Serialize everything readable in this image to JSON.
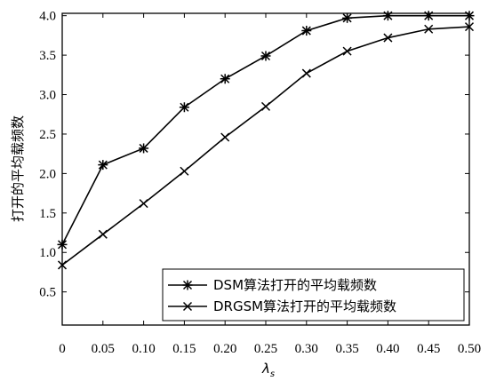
{
  "chart_data": {
    "type": "line",
    "x": [
      0,
      0.05,
      0.1,
      0.15,
      0.2,
      0.25,
      0.3,
      0.35,
      0.4,
      0.45,
      0.5
    ],
    "x_tick_labels": [
      "0",
      "0.05",
      "0.10",
      "0.15",
      "0.20",
      "0.25",
      "0.30",
      "0.35",
      "0.40",
      "0.45",
      "0.50"
    ],
    "y_tick_labels": [
      "0.5",
      "1.0",
      "1.5",
      "2.0",
      "2.5",
      "3.0",
      "3.5",
      "4.0"
    ],
    "y_ticks": [
      0.5,
      1.0,
      1.5,
      2.0,
      2.5,
      3.0,
      3.5,
      4.0
    ],
    "xlim": [
      0,
      0.5
    ],
    "ylim": [
      0.08,
      4.03
    ],
    "xlabel_main": "λ",
    "xlabel_sub": "s",
    "ylabel": "打开的平均载频数",
    "grid": false,
    "legend_position": "bottom-right",
    "series": [
      {
        "name": "DSM算法打开的平均载频数",
        "marker": "asterisk",
        "values": [
          1.1,
          2.11,
          2.32,
          2.84,
          3.2,
          3.49,
          3.81,
          3.97,
          4.0,
          4.0,
          4.0
        ]
      },
      {
        "name": "DRGSM算法打开的平均载频数",
        "marker": "cross",
        "values": [
          0.84,
          1.23,
          1.62,
          2.03,
          2.46,
          2.85,
          3.27,
          3.55,
          3.72,
          3.83,
          3.86
        ]
      }
    ]
  }
}
